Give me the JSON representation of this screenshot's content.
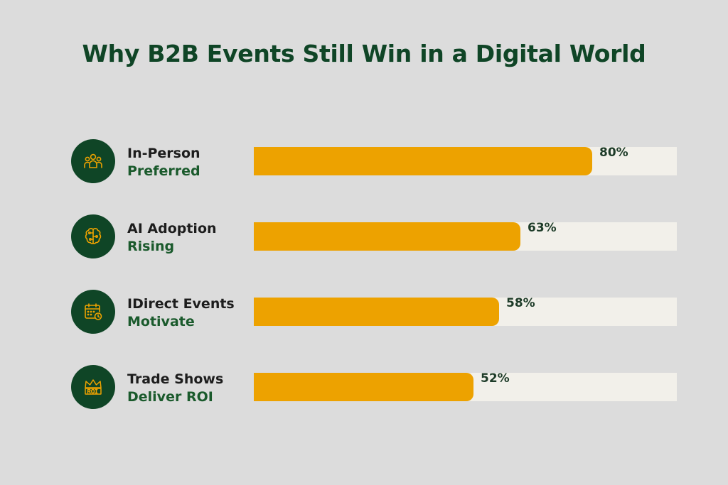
{
  "chart_data": {
    "type": "bar",
    "orientation": "horizontal",
    "title": "Why B2B Events Still Win in a Digital World",
    "categories": [
      {
        "line1": "In-Person",
        "line2": "Preferred",
        "icon": "people-group-icon"
      },
      {
        "line1": "AI Adoption",
        "line2": "Rising",
        "icon": "brain-circuit-icon"
      },
      {
        "line1": "IDirect Events",
        "line2": "Motivate",
        "icon": "calendar-clock-icon"
      },
      {
        "line1": "Trade Shows",
        "line2": "Deliver ROI",
        "icon": "roi-crown-icon"
      }
    ],
    "values": [
      80,
      63,
      58,
      52
    ],
    "value_labels": [
      "80%",
      "63%",
      "58%",
      "52%"
    ],
    "xlim": [
      0,
      100
    ],
    "grid": false,
    "legend": "none"
  },
  "colors": {
    "background": "#dcdcdc",
    "title": "#0f4526",
    "icon_circle": "#0f4526",
    "icon_stroke": "#eda200",
    "bar_fill": "#eda200",
    "bar_track": "#f2f0ea",
    "label_primary": "#1d1d1d",
    "label_secondary": "#1a5a2c",
    "value_text": "#1d3b28"
  }
}
